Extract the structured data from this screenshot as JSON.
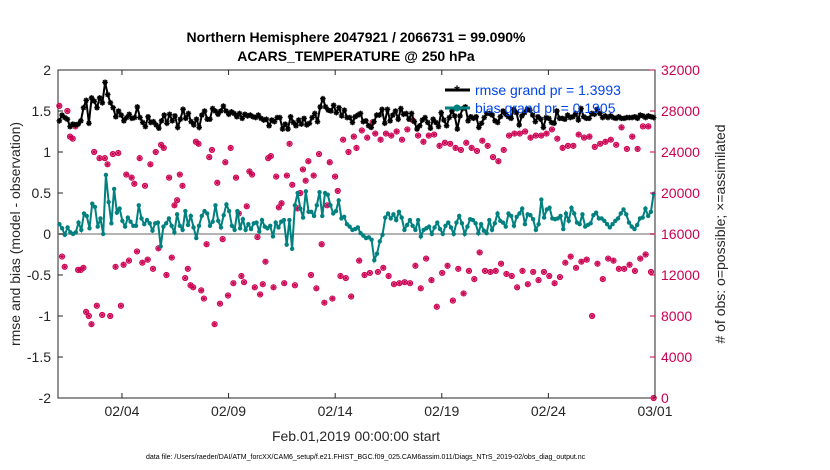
{
  "chart_data": {
    "type": "line",
    "title_line1": "Northern Hemisphere 2047921 / 2066731 = 99.090%",
    "title_line2": "ACARS_TEMPERATURE @ 250 hPa",
    "xlabel": "Feb.01,2019 00:00:00 start",
    "ylabel_left": "rmse and bias (model - observation)",
    "ylabel_right": "# of obs: o=possible; ×=assimilated",
    "footnote": "data file: /Users/raeder/DAI/ATM_forcXX/CAM6_setup/f.e21.FHIST_BGC.f09_025.CAM6assim.011/Diags_NTrS_2019-02/obs_diag_output.nc",
    "x_range": [
      1,
      29
    ],
    "x_ticks": [
      {
        "x": 4,
        "label": "02/04"
      },
      {
        "x": 9,
        "label": "02/09"
      },
      {
        "x": 14,
        "label": "02/14"
      },
      {
        "x": 19,
        "label": "02/19"
      },
      {
        "x": 24,
        "label": "02/24"
      },
      {
        "x": 29,
        "label": "03/01"
      }
    ],
    "ylim_left": [
      -2,
      2
    ],
    "left_ticks": [
      "-2",
      "-1.5",
      "-1",
      "-0.5",
      "0",
      "0.5",
      "1",
      "1.5",
      "2"
    ],
    "ylim_right": [
      0,
      32000
    ],
    "right_ticks": [
      "0",
      "4000",
      "8000",
      "12000",
      "16000",
      "20000",
      "24000",
      "28000",
      "32000"
    ],
    "legend": [
      {
        "label": "rmse grand pr = 1.3993"
      },
      {
        "label": "bias grand pr = 0.1905"
      }
    ],
    "colors": {
      "rmse": "#000000",
      "bias": "#00807f",
      "obs": "#cc0052",
      "legend_text": "#0044ee",
      "zero_line": "#b3b3b3",
      "axis": "#262626"
    },
    "series": [
      {
        "name": "rmse",
        "values": [
          1.38,
          1.45,
          1.42,
          1.4,
          1.31,
          1.34,
          1.33,
          1.34,
          1.38,
          1.54,
          1.63,
          1.35,
          1.66,
          1.62,
          1.54,
          1.66,
          1.6,
          1.85,
          1.7,
          1.6,
          1.54,
          1.43,
          1.5,
          1.45,
          1.38,
          1.42,
          1.46,
          1.41,
          1.42,
          1.55,
          1.42,
          1.36,
          1.31,
          1.43,
          1.36,
          1.37,
          1.33,
          1.29,
          1.38,
          1.45,
          1.35,
          1.46,
          1.38,
          1.44,
          1.3,
          1.4,
          1.52,
          1.41,
          1.47,
          1.37,
          1.33,
          1.4,
          1.3,
          1.45,
          1.5,
          1.4,
          1.4,
          1.53,
          1.5,
          1.46,
          1.5,
          1.56,
          1.5,
          1.46,
          1.49,
          1.47,
          1.43,
          1.47,
          1.41,
          1.46,
          1.44,
          1.45,
          1.43,
          1.42,
          1.45,
          1.41,
          1.39,
          1.4,
          1.32,
          1.39,
          1.37,
          1.42,
          1.42,
          1.28,
          1.34,
          1.28,
          1.43,
          1.36,
          1.32,
          1.39,
          1.34,
          1.41,
          1.33,
          1.35,
          1.42,
          1.47,
          1.37,
          1.55,
          1.65,
          1.55,
          1.51,
          1.5,
          1.57,
          1.48,
          1.54,
          1.44,
          1.51,
          1.42,
          1.42,
          1.36,
          1.43,
          1.45,
          1.47,
          1.37,
          1.38,
          1.32,
          1.3,
          1.37,
          1.45,
          1.45,
          1.52,
          1.35,
          1.52,
          1.38,
          1.45,
          1.5,
          1.4,
          1.53,
          1.46,
          1.47,
          1.4,
          1.47,
          1.37,
          1.28,
          1.32,
          1.39,
          1.42,
          1.36,
          1.29,
          1.4,
          1.36,
          1.31,
          1.48,
          1.39,
          1.32,
          1.42,
          1.5,
          1.44,
          1.28,
          1.44,
          1.53,
          1.55,
          1.38,
          1.43,
          1.41,
          1.43,
          1.3,
          1.35,
          1.42,
          1.47,
          1.47,
          1.45,
          1.38,
          1.36,
          1.43,
          1.5,
          1.46,
          1.43,
          1.41,
          1.52,
          1.48,
          1.33,
          1.44,
          1.48,
          1.52,
          1.51,
          1.45,
          1.37,
          1.43,
          1.4,
          1.3,
          1.42,
          1.41,
          1.36,
          1.35,
          1.5,
          1.41,
          1.41,
          1.4,
          1.45,
          1.42,
          1.43,
          1.47,
          1.39,
          1.53,
          1.43,
          1.41,
          1.41,
          1.47,
          1.46,
          1.52,
          1.47,
          1.42,
          1.44,
          1.42,
          1.44,
          1.42,
          1.41,
          1.43,
          1.41,
          1.41,
          1.42,
          1.42,
          1.42,
          1.43,
          1.41,
          1.45,
          1.44,
          1.42,
          1.44,
          1.43,
          1.42
        ]
      },
      {
        "name": "bias",
        "values": [
          0.12,
          0.07,
          -0.01,
          0.08,
          0.02,
          0.0,
          0.02,
          0.14,
          0.05,
          0.25,
          0.22,
          0.07,
          0.37,
          0.33,
          0.09,
          0.19,
          0.0,
          0.72,
          0.39,
          0.13,
          0.55,
          0.26,
          0.31,
          0.16,
          0.09,
          0.2,
          0.15,
          0.1,
          0.1,
          0.35,
          0.19,
          0.12,
          0.17,
          0.13,
          0.04,
          0.13,
          0.14,
          -0.15,
          0.09,
          0.13,
          0.19,
          0.1,
          0.02,
          0.24,
          0.1,
          0.05,
          0.28,
          0.11,
          0.22,
          0.08,
          -0.05,
          0.1,
          0.22,
          0.28,
          0.25,
          0.1,
          0.15,
          0.35,
          0.16,
          0.08,
          0.23,
          0.36,
          0.28,
          0.1,
          0.05,
          0.28,
          0.07,
          0.18,
          0.05,
          0.12,
          0.06,
          0.13,
          0.14,
          0.03,
          0.17,
          0.09,
          0.07,
          0.1,
          -0.03,
          0.14,
          0.08,
          0.15,
          0.17,
          -0.13,
          0.17,
          -0.18,
          0.35,
          0.5,
          0.31,
          0.2,
          0.52,
          0.27,
          0.27,
          0.22,
          0.35,
          0.51,
          0.22,
          0.5,
          0.48,
          0.35,
          0.25,
          0.28,
          0.41,
          0.19,
          0.21,
          0.12,
          0.09,
          0.05,
          0.06,
          0.08,
          0.01,
          -0.02,
          -0.05,
          -0.04,
          -0.07,
          -0.32,
          -0.24,
          -0.09,
          -0.01,
          0.2,
          0.25,
          0.19,
          0.24,
          0.17,
          0.27,
          0.2,
          0.05,
          0.11,
          0.17,
          0.1,
          0.05,
          0.17,
          -0.03,
          0.05,
          0.07,
          0.09,
          0.0,
          0.08,
          0.14,
          0.06,
          0.0,
          0.1,
          0.14,
          0.08,
          0.0,
          0.14,
          0.22,
          0.13,
          0.0,
          0.09,
          0.18,
          0.17,
          0.13,
          0.01,
          0.12,
          0.04,
          0.01,
          0.17,
          0.05,
          0.13,
          0.25,
          0.16,
          0.14,
          0.09,
          0.25,
          0.22,
          0.1,
          0.21,
          0.25,
          0.31,
          0.12,
          0.24,
          0.23,
          0.18,
          0.05,
          0.12,
          0.42,
          0.2,
          0.3,
          0.32,
          0.19,
          0.18,
          0.19,
          0.22,
          0.06,
          0.25,
          0.16,
          0.32,
          0.25,
          0.14,
          0.12,
          0.24,
          0.09,
          0.11,
          0.13,
          0.23,
          0.26,
          0.19,
          0.19,
          0.16,
          0.12,
          0.08,
          0.12,
          0.16,
          0.19,
          0.25,
          0.3,
          0.24,
          0.14,
          0.09,
          0.06,
          0.11,
          0.19,
          0.2,
          0.31,
          0.22,
          0.27,
          0.49
        ]
      },
      {
        "name": "obs_count_possible",
        "values": [
          28500,
          13800,
          12800,
          28000,
          25500,
          25300,
          26500,
          12500,
          12500,
          12700,
          8400,
          8000,
          7200,
          24000,
          9000,
          23400,
          8100,
          23400,
          22800,
          8000,
          23800,
          12800,
          23900,
          9000,
          13000,
          21800,
          13400,
          21500,
          20900,
          14300,
          23400,
          13200,
          20700,
          13500,
          22800,
          12600,
          24000,
          14600,
          24700,
          24400,
          12000,
          21500,
          13700,
          18800,
          19300,
          21800,
          20700,
          11700,
          12600,
          11000,
          10800,
          25000,
          24800,
          10500,
          9700,
          15000,
          23500,
          24200,
          7200,
          21000,
          9200,
          15500,
          23000,
          10000,
          24400,
          11200,
          21500,
          18000,
          11900,
          11300,
          18700,
          22100,
          21800,
          10800,
          15700,
          10100,
          11100,
          13300,
          23400,
          23600,
          10800,
          21600,
          18600,
          19000,
          11200,
          21700,
          24800,
          20800,
          11000,
          18500,
          20000,
          22300,
          21200,
          23100,
          12000,
          21700,
          10700,
          23800,
          15000,
          9300,
          18800,
          23000,
          9700,
          21600,
          20200,
          11900,
          25200,
          11700,
          24000,
          9900,
          25500,
          24400,
          13400,
          26100,
          12000,
          25400,
          12200,
          26900,
          25800,
          12300,
          25200,
          12700,
          25800,
          11900,
          25600,
          11100,
          26000,
          11200,
          25200,
          11300,
          26200,
          11200,
          27100,
          12900,
          25600,
          10700,
          25000,
          13600,
          25600,
          11500,
          25700,
          8900,
          24600,
          12200,
          24900,
          12900,
          24800,
          9500,
          24400,
          12600,
          24200,
          10200,
          24900,
          12400,
          24400,
          11600,
          24100,
          14200,
          25100,
          12400,
          24600,
          12300,
          23500,
          12400,
          23100,
          13100,
          24200,
          12100,
          25600,
          11900,
          25800,
          10800,
          25800,
          12400,
          26000,
          11100,
          25400,
          12300,
          25600,
          11500,
          25600,
          12300,
          25800,
          11900,
          26200,
          11200,
          25300,
          11800,
          24400,
          13200,
          24600,
          13800,
          24600,
          12700,
          25700,
          13300,
          25400,
          13500,
          25500,
          8000,
          24500,
          13100,
          24800,
          11600,
          25000,
          13600,
          25200,
          13400,
          24700,
          12600,
          26400,
          12600,
          24300,
          13000,
          25500,
          12400,
          24300,
          13600,
          26500,
          14000,
          26500,
          12300,
          0
        ]
      }
    ]
  }
}
